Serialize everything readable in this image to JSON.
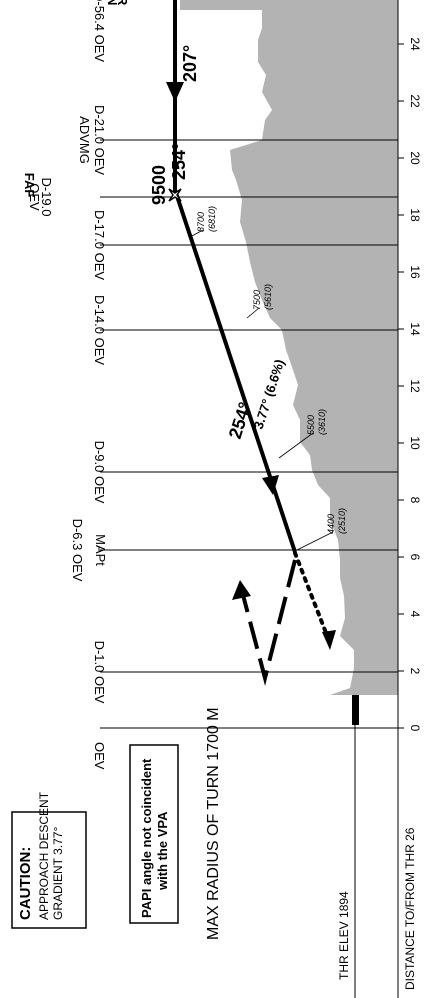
{
  "colors": {
    "terrain": "#b3b3b3",
    "ink": "#000000",
    "background": "#ffffff"
  },
  "caution": {
    "title": "CAUTION:",
    "line1": "APPROACH DESCENT",
    "line2": "GRADIENT 3.77°"
  },
  "papi_note": {
    "line1": "PAPI angle not coincident",
    "line2": "with the VPA"
  },
  "max_radius": "MAX RADIUS OF TURN 1700 M",
  "thr_elev": "THR ELEV 1894",
  "distance_axis_label": "DISTANCE TO/FROM THR 26",
  "distance_ticks": [
    "0",
    "2",
    "4",
    "6",
    "8",
    "10",
    "12",
    "14",
    "16",
    "18",
    "20",
    "22",
    "24",
    "2"
  ],
  "fix_labels": {
    "oev": "OEV",
    "d10": "D-1.0 OEV",
    "mapt": "MAPt",
    "d63": "D-6.3 OEV",
    "d90": "D-9.0 OEV",
    "d140": "D-14.0 OEV",
    "d170": "D-17.0 OEV",
    "faf": "FAF",
    "d190_line1": "D-19.0",
    "d190_line2": "OEV",
    "advmg": "ADVMG",
    "d210": "D-21.0 OEV",
    "top_fix": "D-56.4 OEV",
    "top_fix_b1": "N",
    "top_fix_b2": "R"
  },
  "faf_altitude": "9500",
  "course_inbound": "254°",
  "course_upper": "207°",
  "course_mid": "254°",
  "gradient": "3.77° (6.6%)",
  "altitudes": [
    {
      "msl": "8700",
      "hat": "(6810)"
    },
    {
      "msl": "7500",
      "hat": "(5610)"
    },
    {
      "msl": "5500",
      "hat": "(3610)"
    },
    {
      "msl": "4400",
      "hat": "(2510)"
    }
  ]
}
